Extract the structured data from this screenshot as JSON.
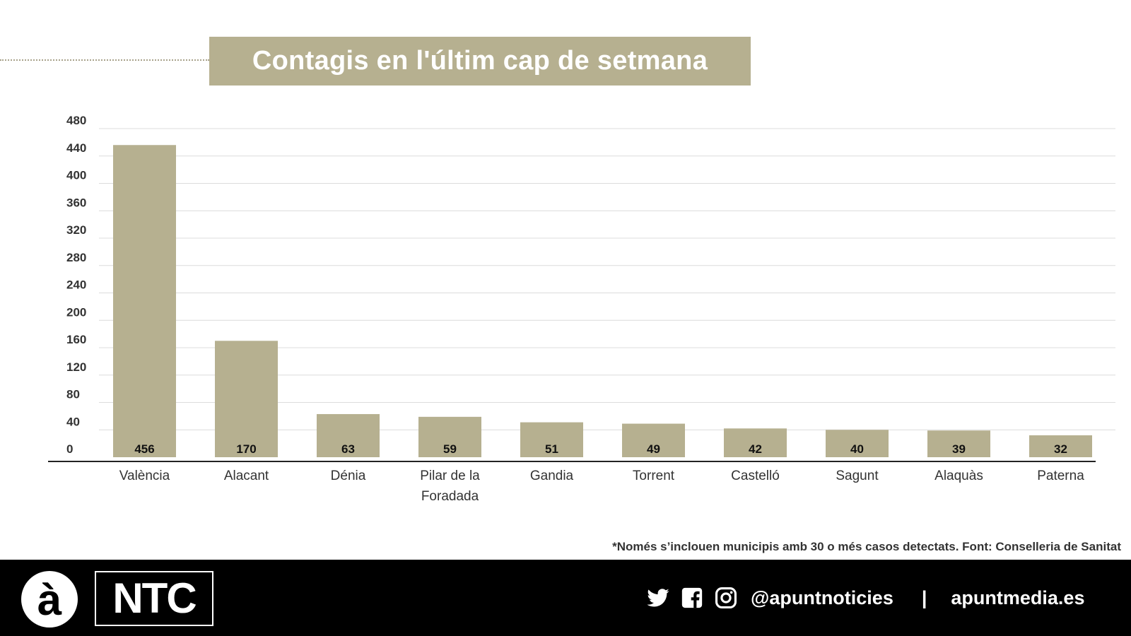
{
  "title": "Contagis en l'últim cap de setmana",
  "chart_data": {
    "type": "bar",
    "categories": [
      "València",
      "Alacant",
      "Dénia",
      "Pilar de la Foradada",
      "Gandia",
      "Torrent",
      "Castelló",
      "Sagunt",
      "Alaquàs",
      "Paterna"
    ],
    "values": [
      456,
      170,
      63,
      59,
      51,
      49,
      42,
      40,
      39,
      32
    ],
    "ylim": [
      0,
      480
    ],
    "yticks": [
      0,
      40,
      80,
      120,
      160,
      200,
      240,
      280,
      320,
      360,
      400,
      440,
      480
    ],
    "bar_color": "#b6b090",
    "grid": true
  },
  "footnote": "*Només s’inclouen municipis amb 30 o més casos detectats. Font: Conselleria de Sanitat",
  "footer": {
    "logo_a": "à",
    "logo_ntc": "NTC",
    "social_handle": "@apuntnoticies",
    "separator": "|",
    "website": "apuntmedia.es"
  }
}
